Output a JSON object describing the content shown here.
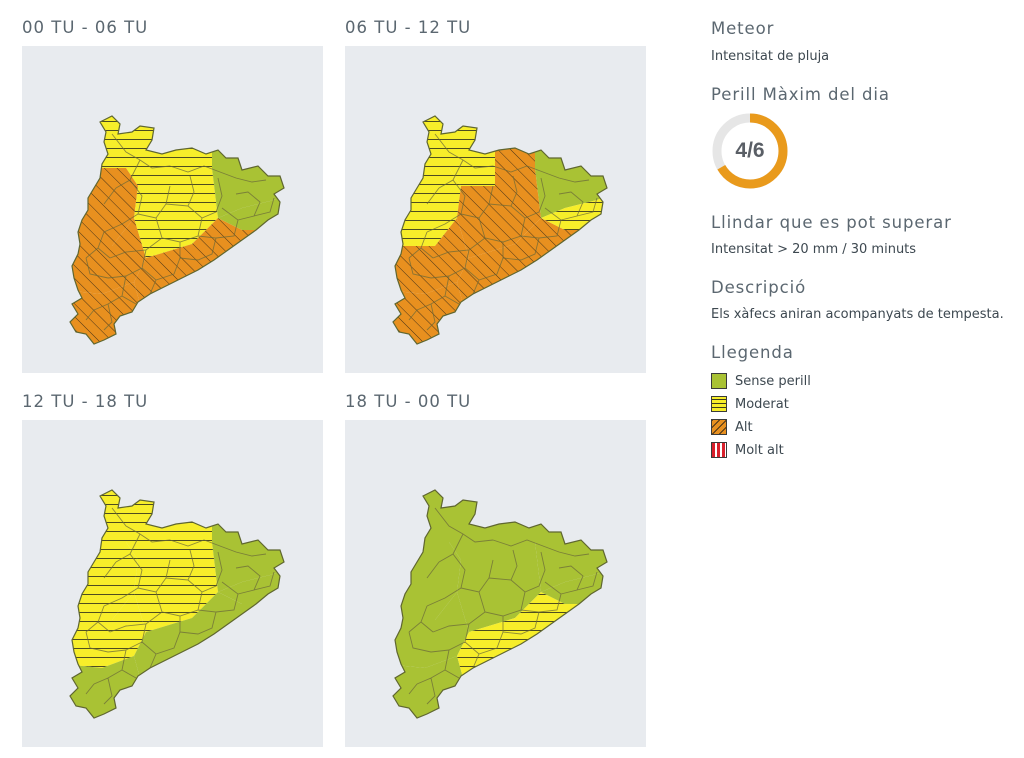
{
  "colors": {
    "sense_perill": "#a9c234",
    "moderat": "#f7ee2a",
    "alt": "#e8901f",
    "molt_alt": "#d8202b",
    "map_background": "#e8ebef",
    "gauge_track": "#e6e6e6",
    "gauge_fill": "#e99a1c",
    "heading": "#5b6770"
  },
  "periods": [
    {
      "label": "00 TU - 06 TU",
      "levels": {
        "north": "moderat",
        "northwest": "alt",
        "west": "alt",
        "southwest": "alt",
        "central": "moderat",
        "south_coast": "alt",
        "northeast": "sense_perill",
        "east_coast": "sense_perill"
      }
    },
    {
      "label": "06 TU - 12 TU",
      "levels": {
        "north": "moderat",
        "northwest": "moderat",
        "west": "alt",
        "southwest": "alt",
        "central": "alt",
        "south_coast": "alt",
        "northeast": "sense_perill",
        "east_coast": "moderat"
      }
    },
    {
      "label": "12 TU - 18 TU",
      "levels": {
        "north": "moderat",
        "northwest": "moderat",
        "west": "moderat",
        "southwest": "sense_perill",
        "central": "moderat",
        "south_coast": "sense_perill",
        "northeast": "sense_perill",
        "east_coast": "sense_perill"
      }
    },
    {
      "label": "18 TU - 00 TU",
      "levels": {
        "north": "sense_perill",
        "northwest": "sense_perill",
        "west": "sense_perill",
        "southwest": "sense_perill",
        "central": "sense_perill",
        "south_coast": "moderat",
        "northeast": "sense_perill",
        "east_coast": "sense_perill"
      }
    }
  ],
  "sidebar": {
    "meteor_heading": "Meteor",
    "meteor_value": "Intensitat de pluja",
    "danger_heading": "Perill Màxim del dia",
    "danger_value": "4/6",
    "danger_fraction": 0.6667,
    "threshold_heading": "Llindar que es pot superar",
    "threshold_value": "Intensitat > 20 mm / 30 minuts",
    "description_heading": "Descripció",
    "description_value": "Els xàfecs aniran acompanyats de tempesta.",
    "legend_heading": "Llegenda",
    "legend": [
      {
        "key": "sense_perill",
        "label": "Sense perill"
      },
      {
        "key": "moderat",
        "label": "Moderat"
      },
      {
        "key": "alt",
        "label": "Alt"
      },
      {
        "key": "molt_alt",
        "label": "Molt alt"
      }
    ]
  }
}
